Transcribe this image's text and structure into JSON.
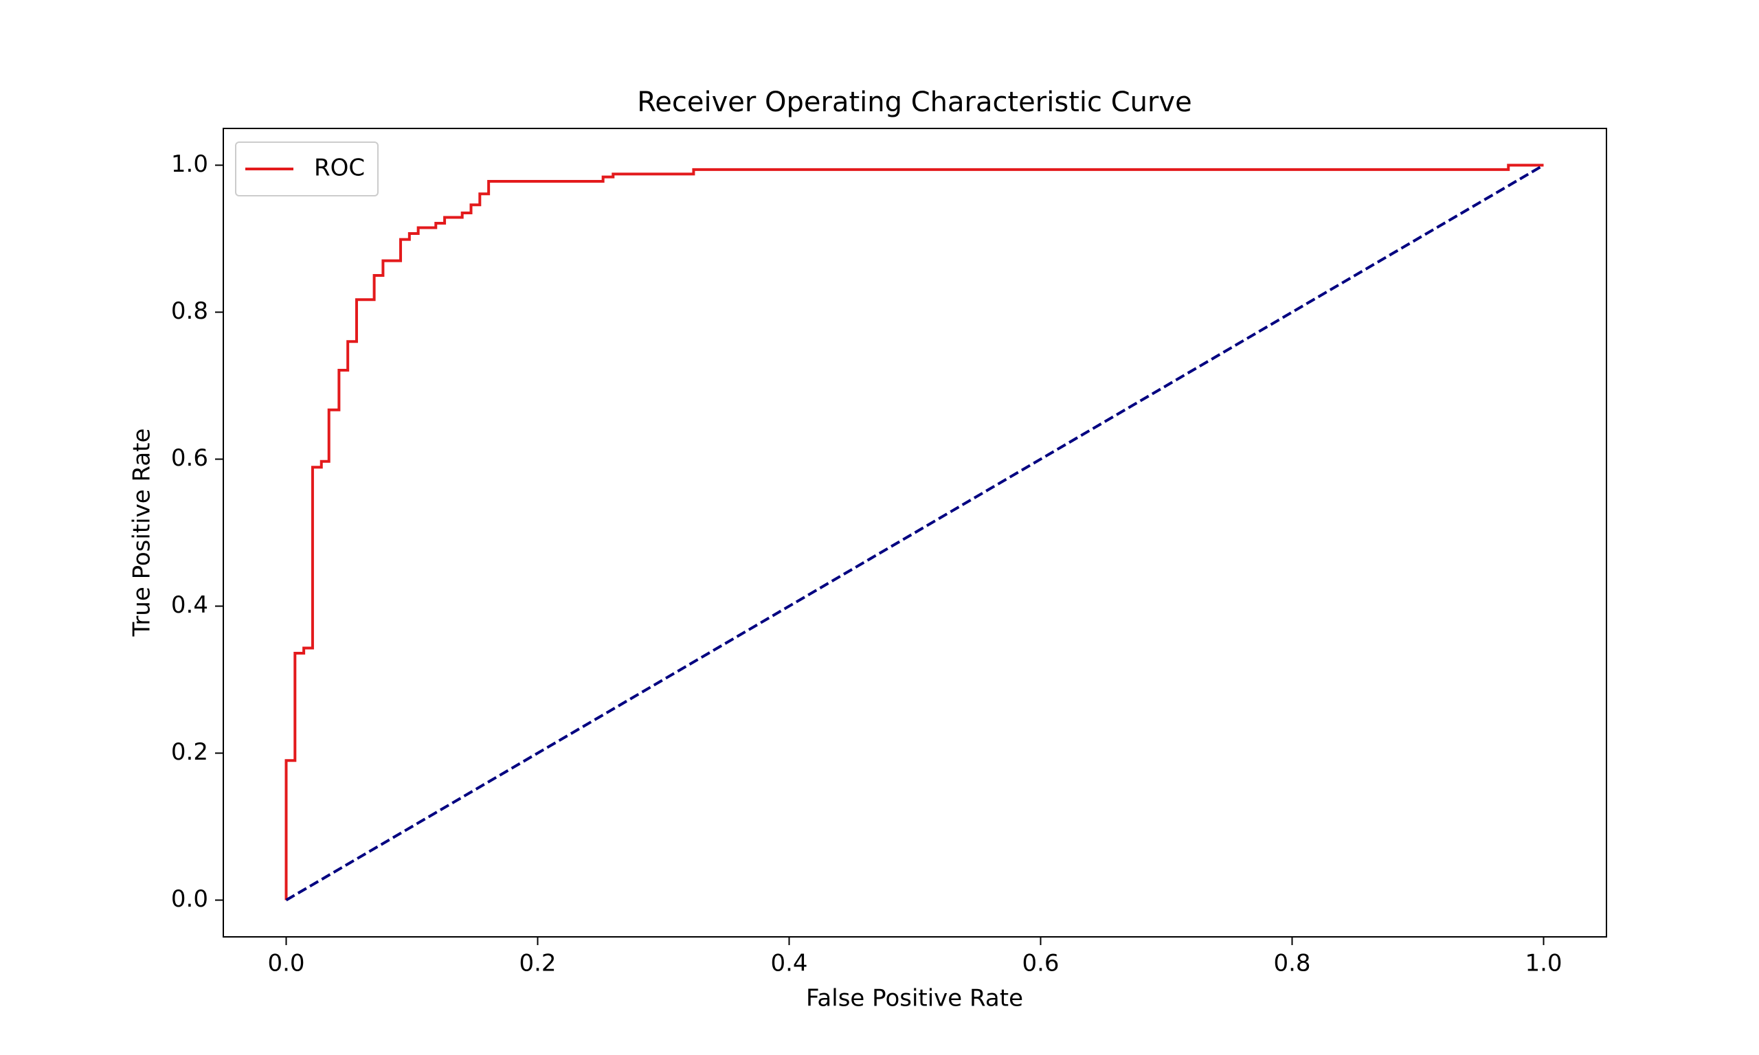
{
  "chart_data": {
    "type": "line",
    "title": "Receiver Operating Characteristic Curve",
    "xlabel": "False Positive Rate",
    "ylabel": "True Positive Rate",
    "xlim": [
      -0.05,
      1.05
    ],
    "ylim": [
      -0.05,
      1.05
    ],
    "xticks": [
      {
        "value": 0,
        "label": "0.0"
      },
      0.2,
      0.4,
      0.6,
      0.8,
      {
        "value": 1,
        "label": "1.0"
      }
    ],
    "yticks": [
      {
        "value": 0,
        "label": "0.0"
      },
      0.2,
      0.4,
      0.6,
      0.8,
      {
        "value": 1,
        "label": "1.0"
      }
    ],
    "legend": "upper left",
    "series": [
      {
        "name": "ROC",
        "color": "#e31a1c",
        "linestyle": "solid",
        "drawstyle": "steps",
        "x": [
          0,
          0,
          0.007,
          0.007,
          0.014,
          0.014,
          0.021,
          0.021,
          0.028,
          0.028,
          0.034,
          0.034,
          0.042,
          0.042,
          0.049,
          0.049,
          0.056,
          0.056,
          0.07,
          0.07,
          0.077,
          0.077,
          0.091,
          0.091,
          0.098,
          0.098,
          0.105,
          0.105,
          0.119,
          0.119,
          0.126,
          0.126,
          0.14,
          0.14,
          0.147,
          0.147,
          0.154,
          0.154,
          0.161,
          0.161,
          0.252,
          0.252,
          0.26,
          0.26,
          0.324,
          0.324,
          0.972,
          0.972,
          1
        ],
        "values": [
          0,
          0.19,
          0.19,
          0.336,
          0.336,
          0.343,
          0.343,
          0.589,
          0.589,
          0.597,
          0.597,
          0.667,
          0.667,
          0.721,
          0.721,
          0.76,
          0.76,
          0.817,
          0.817,
          0.85,
          0.85,
          0.87,
          0.87,
          0.899,
          0.899,
          0.907,
          0.907,
          0.915,
          0.915,
          0.921,
          0.921,
          0.929,
          0.929,
          0.935,
          0.935,
          0.946,
          0.946,
          0.961,
          0.961,
          0.978,
          0.978,
          0.984,
          0.984,
          0.988,
          0.988,
          0.994,
          0.994,
          1,
          1
        ]
      },
      {
        "color": "#000080",
        "linestyle": "dashed",
        "x": [
          0,
          1
        ],
        "values": [
          0,
          1
        ]
      }
    ]
  }
}
